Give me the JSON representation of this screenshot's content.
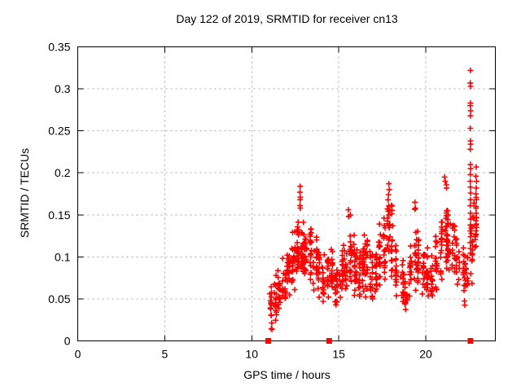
{
  "chart_data": {
    "type": "scatter",
    "title": "Day 122 of 2019, SRMTID for receiver cn13",
    "xlabel": "GPS time / hours",
    "ylabel": "SRMTID / TECUs",
    "xlim": [
      0,
      24
    ],
    "ylim": [
      0,
      0.35
    ],
    "xticks": [
      0,
      5,
      10,
      15,
      20
    ],
    "yticks": [
      0,
      0.05,
      0.1,
      0.15,
      0.2,
      0.25,
      0.3,
      0.35
    ],
    "grid": "dashed-major-both-axes",
    "legend": "none",
    "marker": "plus",
    "marker_color": "#ff0000",
    "grid_color": "#a8a8a8",
    "axis_color": "#000000",
    "data_x_extent": [
      10.95,
      23.0
    ],
    "point_bins_x0_x1_n_ylo_yhi": [
      [
        11.0,
        11.25,
        16,
        0.008,
        0.065
      ],
      [
        11.25,
        11.5,
        14,
        0.02,
        0.08
      ],
      [
        11.5,
        11.75,
        16,
        0.03,
        0.09
      ],
      [
        11.75,
        12.0,
        18,
        0.04,
        0.105
      ],
      [
        12.0,
        12.25,
        20,
        0.05,
        0.12
      ],
      [
        12.25,
        12.5,
        22,
        0.06,
        0.14
      ],
      [
        12.5,
        12.75,
        22,
        0.07,
        0.145
      ],
      [
        12.75,
        13.0,
        22,
        0.075,
        0.145
      ],
      [
        13.0,
        13.25,
        20,
        0.075,
        0.14
      ],
      [
        13.25,
        13.5,
        18,
        0.07,
        0.148
      ],
      [
        13.5,
        13.75,
        18,
        0.06,
        0.125
      ],
      [
        13.75,
        14.0,
        16,
        0.05,
        0.115
      ],
      [
        14.0,
        14.25,
        16,
        0.045,
        0.11
      ],
      [
        14.25,
        14.5,
        16,
        0.05,
        0.12
      ],
      [
        14.5,
        14.75,
        18,
        0.05,
        0.115
      ],
      [
        14.75,
        15.0,
        18,
        0.04,
        0.1
      ],
      [
        15.0,
        15.25,
        18,
        0.045,
        0.115
      ],
      [
        15.25,
        15.5,
        18,
        0.055,
        0.135
      ],
      [
        15.5,
        15.75,
        18,
        0.06,
        0.155
      ],
      [
        15.75,
        16.0,
        18,
        0.05,
        0.135
      ],
      [
        16.0,
        16.25,
        18,
        0.05,
        0.125
      ],
      [
        16.25,
        16.5,
        18,
        0.055,
        0.135
      ],
      [
        16.5,
        16.75,
        18,
        0.05,
        0.13
      ],
      [
        16.75,
        17.0,
        16,
        0.045,
        0.115
      ],
      [
        17.0,
        17.25,
        18,
        0.05,
        0.12
      ],
      [
        17.25,
        17.5,
        18,
        0.06,
        0.14
      ],
      [
        17.5,
        17.75,
        18,
        0.065,
        0.155
      ],
      [
        17.75,
        18.0,
        20,
        0.075,
        0.19
      ],
      [
        18.0,
        18.25,
        18,
        0.07,
        0.17
      ],
      [
        18.25,
        18.5,
        16,
        0.05,
        0.13
      ],
      [
        18.5,
        18.75,
        16,
        0.038,
        0.1
      ],
      [
        18.75,
        19.0,
        14,
        0.03,
        0.09
      ],
      [
        19.0,
        19.25,
        16,
        0.045,
        0.12
      ],
      [
        19.25,
        19.5,
        16,
        0.055,
        0.165
      ],
      [
        19.5,
        19.75,
        18,
        0.055,
        0.14
      ],
      [
        19.75,
        20.0,
        18,
        0.05,
        0.145
      ],
      [
        20.0,
        20.25,
        16,
        0.045,
        0.12
      ],
      [
        20.25,
        20.5,
        16,
        0.04,
        0.115
      ],
      [
        20.5,
        20.75,
        16,
        0.05,
        0.13
      ],
      [
        20.75,
        21.0,
        18,
        0.07,
        0.17
      ],
      [
        21.0,
        21.25,
        20,
        0.085,
        0.195
      ],
      [
        21.25,
        21.5,
        18,
        0.08,
        0.185
      ],
      [
        21.5,
        21.75,
        16,
        0.07,
        0.16
      ],
      [
        21.75,
        22.0,
        16,
        0.06,
        0.14
      ],
      [
        22.0,
        22.25,
        14,
        0.04,
        0.12
      ],
      [
        22.25,
        22.5,
        12,
        0.05,
        0.115
      ],
      [
        22.5,
        22.75,
        16,
        0.05,
        0.175
      ],
      [
        22.75,
        23.0,
        12,
        0.1,
        0.185
      ]
    ],
    "outlier_points": [
      [
        12.78,
        0.184
      ],
      [
        12.77,
        0.177
      ],
      [
        12.79,
        0.171
      ],
      [
        12.78,
        0.168
      ],
      [
        12.77,
        0.161
      ],
      [
        12.79,
        0.158
      ],
      [
        15.55,
        0.156
      ],
      [
        15.57,
        0.148
      ],
      [
        17.88,
        0.187
      ],
      [
        17.9,
        0.18
      ],
      [
        17.86,
        0.174
      ],
      [
        19.38,
        0.165
      ],
      [
        19.4,
        0.158
      ],
      [
        21.08,
        0.195
      ],
      [
        21.12,
        0.19
      ],
      [
        22.57,
        0.322
      ],
      [
        22.56,
        0.307
      ],
      [
        22.58,
        0.303
      ],
      [
        22.57,
        0.283
      ],
      [
        22.56,
        0.28
      ],
      [
        22.58,
        0.274
      ],
      [
        22.57,
        0.268
      ],
      [
        22.56,
        0.253
      ],
      [
        22.57,
        0.238
      ],
      [
        22.58,
        0.234
      ],
      [
        22.56,
        0.228
      ],
      [
        22.57,
        0.21
      ],
      [
        22.58,
        0.205
      ],
      [
        22.57,
        0.198
      ],
      [
        22.56,
        0.19
      ],
      [
        22.57,
        0.183
      ],
      [
        22.58,
        0.176
      ],
      [
        22.57,
        0.168
      ],
      [
        22.56,
        0.161
      ],
      [
        22.57,
        0.152
      ],
      [
        22.58,
        0.145
      ],
      [
        22.57,
        0.138
      ],
      [
        22.56,
        0.131
      ],
      [
        22.57,
        0.124
      ],
      [
        22.56,
        0.117
      ],
      [
        22.57,
        0.11
      ],
      [
        22.9,
        0.207
      ],
      [
        22.88,
        0.196
      ],
      [
        22.92,
        0.19
      ],
      [
        22.9,
        0.182
      ],
      [
        22.88,
        0.175
      ],
      [
        22.91,
        0.168
      ],
      [
        22.89,
        0.158
      ],
      [
        22.9,
        0.152
      ],
      [
        22.91,
        0.147
      ],
      [
        22.88,
        0.143
      ],
      [
        22.9,
        0.139
      ],
      [
        22.92,
        0.135
      ],
      [
        22.89,
        0.131
      ],
      [
        22.9,
        0.127
      ]
    ],
    "zero_markers_x": [
      10.95,
      14.45,
      22.57
    ]
  }
}
